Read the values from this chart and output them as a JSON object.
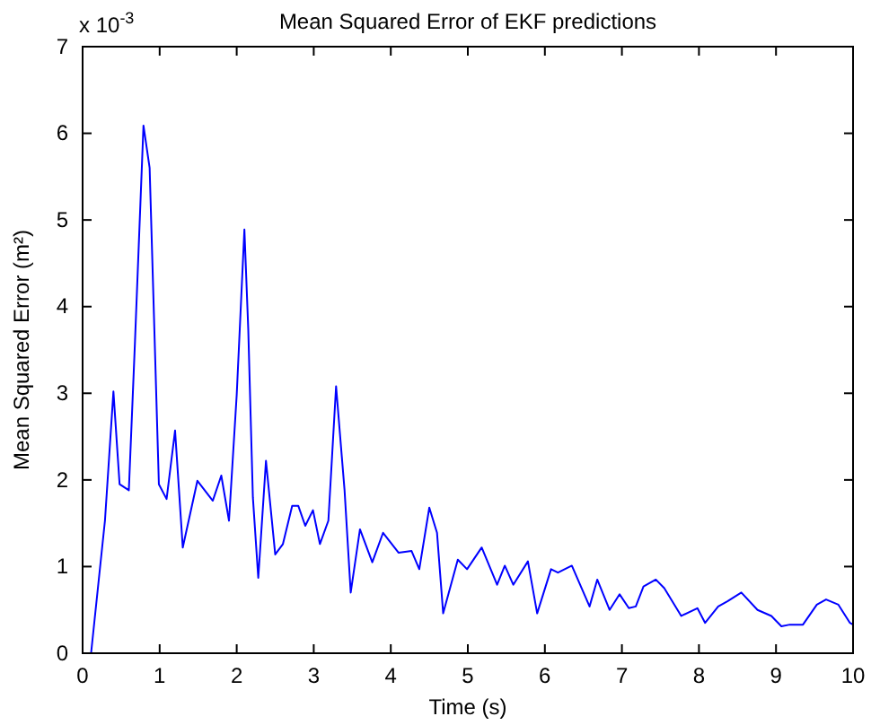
{
  "chart_data": {
    "type": "line",
    "title": "Mean Squared Error of EKF predictions",
    "xlabel": "Time (s)",
    "ylabel": "Mean Squared Error (m²)",
    "annotations": [
      "x 10$^{-3}$"
    ],
    "xlim": [
      0,
      10
    ],
    "xticks": [
      0,
      1,
      2,
      3,
      4,
      5,
      6,
      7,
      8,
      9,
      10
    ],
    "ylim": [
      0,
      7
    ],
    "yticks": [
      0,
      1,
      2,
      3,
      4,
      5,
      6,
      7
    ],
    "marker": "none",
    "line_style": "solid",
    "series": [
      {
        "color": "#0000ff",
        "x": [
          0,
          0.11,
          0.29,
          0.4,
          0.48,
          0.6,
          0.68,
          0.79,
          0.87,
          0.99,
          1.09,
          1.2,
          1.3,
          1.49,
          1.69,
          1.8,
          1.9,
          2.0,
          2.1,
          2.15,
          2.21,
          2.28,
          2.38,
          2.5,
          2.6,
          2.72,
          2.8,
          2.89,
          2.99,
          3.08,
          3.19,
          3.29,
          3.4,
          3.48,
          3.6,
          3.76,
          3.9,
          4.1,
          4.27,
          4.37,
          4.5,
          4.6,
          4.68,
          4.87,
          4.99,
          5.18,
          5.38,
          5.48,
          5.59,
          5.78,
          5.9,
          6.08,
          6.17,
          6.35,
          6.58,
          6.68,
          6.84,
          6.97,
          7.09,
          7.18,
          7.28,
          7.44,
          7.55,
          7.77,
          7.98,
          8.08,
          8.25,
          8.37,
          8.55,
          8.76,
          8.94,
          9.07,
          9.18,
          9.35,
          9.53,
          9.65,
          9.81,
          9.96,
          10
        ],
        "values": [
          0,
          0,
          1.53,
          3.02,
          1.95,
          1.88,
          3.6,
          6.09,
          5.6,
          1.95,
          1.78,
          2.57,
          1.22,
          1.99,
          1.76,
          2.05,
          1.53,
          2.98,
          4.89,
          3.74,
          1.8,
          0.87,
          2.22,
          1.14,
          1.26,
          1.7,
          1.7,
          1.47,
          1.65,
          1.26,
          1.53,
          3.08,
          1.88,
          0.7,
          1.43,
          1.05,
          1.39,
          1.16,
          1.18,
          0.97,
          1.68,
          1.39,
          0.46,
          1.08,
          0.97,
          1.22,
          0.79,
          1.01,
          0.79,
          1.06,
          0.46,
          0.97,
          0.93,
          1.01,
          0.54,
          0.85,
          0.5,
          0.68,
          0.52,
          0.54,
          0.77,
          0.85,
          0.75,
          0.43,
          0.52,
          0.35,
          0.54,
          0.6,
          0.7,
          0.5,
          0.43,
          0.31,
          0.33,
          0.33,
          0.56,
          0.62,
          0.56,
          0.35,
          0.33
        ]
      }
    ]
  }
}
